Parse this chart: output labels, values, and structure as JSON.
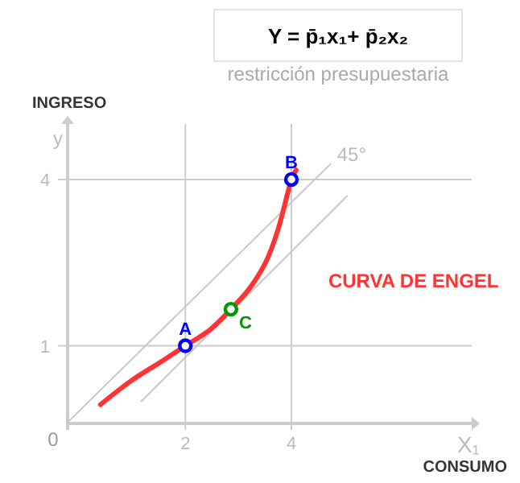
{
  "chart_data": {
    "type": "line",
    "title": "Y = p̄₁x₁+ p̄₂x₂",
    "subtitle": "restricción presupuestaria",
    "xlabel": "CONSUMO",
    "ylabel": "INGRESO",
    "annotations": [
      "y",
      "X₁",
      "0"
    ],
    "xlim": [
      -0.22,
      7.4
    ],
    "ylim": [
      -0.4,
      5.0
    ],
    "xticks": [
      2,
      4
    ],
    "yticks": [
      1,
      4
    ],
    "ref_lines": [
      {
        "axis": "x",
        "value": 2,
        "label": null,
        "color": "#cccccc"
      },
      {
        "axis": "x",
        "value": 4,
        "label": null,
        "color": "#cccccc"
      },
      {
        "axis": "y",
        "value": 1,
        "label": null,
        "color": "#cccccc"
      },
      {
        "axis": "y",
        "value": 4,
        "label": null,
        "color": "#cccccc"
      }
    ],
    "series": [
      {
        "name": "45°",
        "color": "#c8c8c8",
        "x": [
          -0.22,
          4.74
        ],
        "values": [
          -0.38,
          4.28
        ]
      },
      {
        "color": "#c8c8c8",
        "x": [
          1.17,
          5.05
        ],
        "values": [
          0,
          3.7
        ]
      },
      {
        "name": "CURVA DE ENGEL",
        "color": "#ff3333",
        "x": [
          0.4,
          0.95,
          1.57,
          2,
          2.49,
          2.86,
          3.26,
          3.57,
          3.78,
          3.94,
          4,
          4.09
        ],
        "values": [
          -0.06,
          0.35,
          0.73,
          1,
          1.31,
          1.66,
          2.1,
          2.62,
          3.2,
          3.79,
          4,
          4.17
        ]
      },
      {
        "name": "A",
        "type": "scatter",
        "marker": "circle",
        "color": "#0000ff",
        "x": [
          2
        ],
        "values": [
          1
        ]
      },
      {
        "name": "B",
        "type": "scatter",
        "marker": "circle",
        "color": "#0000ff",
        "x": [
          4
        ],
        "values": [
          4
        ]
      },
      {
        "name": "C",
        "type": "scatter",
        "marker": "circle",
        "color": "#009900",
        "x": [
          2.86
        ],
        "values": [
          1.66
        ]
      }
    ]
  }
}
